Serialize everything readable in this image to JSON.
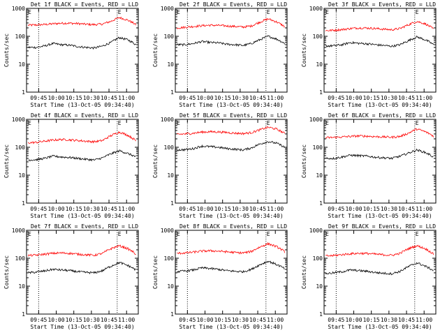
{
  "colors": {
    "events": "#000000",
    "lld": "#ff0000",
    "axis": "#000000",
    "background": "#ffffff"
  },
  "common": {
    "xlabel": "Start Time (13-Oct-05 09:34:40)",
    "ylabel": "Counts/sec",
    "x_ticks": [
      "09:45",
      "10:00",
      "10:15",
      "10:30",
      "10:45",
      "11:00"
    ],
    "y_ticks": [
      "1",
      "10",
      "100",
      "1000"
    ],
    "corner_marker": "E",
    "x_range_hhmm": [
      "09:34:40",
      "11:10"
    ],
    "y_scale": "log",
    "y_range": [
      1,
      1000
    ],
    "dotted_vlines": [
      "09:45",
      "10:52"
    ]
  },
  "chart_data": [
    {
      "type": "line",
      "title": "Det 1f BLACK = Events, RED = LLD",
      "xlabel": "Start Time (13-Oct-05 09:34:40)",
      "ylabel": "Counts/sec",
      "series": [
        {
          "name": "LLD",
          "color": "#ff0000",
          "values": [
            250,
            255,
            265,
            280,
            295,
            295,
            285,
            270,
            262,
            275,
            345,
            470,
            380,
            260
          ]
        },
        {
          "name": "Events",
          "color": "#000000",
          "values": [
            40,
            40,
            45,
            55,
            50,
            48,
            43,
            40,
            38,
            45,
            60,
            90,
            75,
            50
          ]
        }
      ]
    },
    {
      "type": "line",
      "title": "Det 2f BLACK = Events, RED = LLD",
      "xlabel": "Start Time (13-Oct-05 09:34:40)",
      "ylabel": "Counts/sec",
      "series": [
        {
          "name": "LLD",
          "color": "#ff0000",
          "values": [
            200,
            210,
            225,
            240,
            250,
            245,
            235,
            225,
            215,
            235,
            320,
            420,
            330,
            220
          ]
        },
        {
          "name": "Events",
          "color": "#000000",
          "values": [
            50,
            50,
            55,
            65,
            60,
            58,
            52,
            50,
            47,
            55,
            75,
            100,
            80,
            55
          ]
        }
      ]
    },
    {
      "type": "line",
      "title": "Det 3f BLACK = Events, RED = LLD",
      "xlabel": "Start Time (13-Oct-05 09:34:40)",
      "ylabel": "Counts/sec",
      "series": [
        {
          "name": "LLD",
          "color": "#ff0000",
          "values": [
            160,
            165,
            175,
            190,
            200,
            198,
            190,
            180,
            172,
            190,
            260,
            340,
            280,
            180
          ]
        },
        {
          "name": "Events",
          "color": "#000000",
          "values": [
            45,
            46,
            50,
            60,
            56,
            54,
            50,
            47,
            44,
            50,
            70,
            95,
            75,
            50
          ]
        }
      ]
    },
    {
      "type": "line",
      "title": "Det 4f BLACK = Events, RED = LLD",
      "xlabel": "Start Time (13-Oct-05 09:34:40)",
      "ylabel": "Counts/sec",
      "series": [
        {
          "name": "LLD",
          "color": "#ff0000",
          "values": [
            145,
            150,
            165,
            180,
            190,
            185,
            175,
            165,
            158,
            175,
            260,
            350,
            270,
            170
          ]
        },
        {
          "name": "Events",
          "color": "#000000",
          "values": [
            35,
            36,
            40,
            48,
            45,
            43,
            40,
            37,
            35,
            42,
            58,
            75,
            60,
            45
          ]
        }
      ]
    },
    {
      "type": "line",
      "title": "Det 5f BLACK = Events, RED = LLD",
      "xlabel": "Start Time (13-Oct-05 09:34:40)",
      "ylabel": "Counts/sec",
      "series": [
        {
          "name": "LLD",
          "color": "#ff0000",
          "values": [
            290,
            300,
            320,
            350,
            360,
            355,
            340,
            320,
            310,
            335,
            420,
            520,
            450,
            310
          ]
        },
        {
          "name": "Events",
          "color": "#000000",
          "values": [
            80,
            82,
            90,
            110,
            105,
            100,
            90,
            85,
            80,
            95,
            130,
            160,
            140,
            100
          ]
        }
      ]
    },
    {
      "type": "line",
      "title": "Det 6f BLACK = Events, RED = LLD",
      "xlabel": "Start Time (13-Oct-05 09:34:40)",
      "ylabel": "Counts/sec",
      "series": [
        {
          "name": "LLD",
          "color": "#ff0000",
          "values": [
            220,
            225,
            235,
            245,
            255,
            250,
            240,
            235,
            230,
            245,
            320,
            450,
            360,
            250
          ]
        },
        {
          "name": "Events",
          "color": "#000000",
          "values": [
            40,
            40,
            45,
            52,
            50,
            48,
            44,
            42,
            40,
            48,
            62,
            80,
            65,
            45
          ]
        }
      ]
    },
    {
      "type": "line",
      "title": "Det 7f BLACK = Events, RED = LLD",
      "xlabel": "Start Time (13-Oct-05 09:34:40)",
      "ylabel": "Counts/sec",
      "series": [
        {
          "name": "LLD",
          "color": "#ff0000",
          "values": [
            125,
            130,
            140,
            150,
            155,
            150,
            140,
            133,
            128,
            150,
            220,
            280,
            220,
            140
          ]
        },
        {
          "name": "Events",
          "color": "#000000",
          "values": [
            30,
            32,
            35,
            40,
            38,
            36,
            33,
            31,
            30,
            36,
            52,
            70,
            55,
            38
          ]
        }
      ]
    },
    {
      "type": "line",
      "title": "Det 8f BLACK = Events, RED = LLD",
      "xlabel": "Start Time (13-Oct-05 09:34:40)",
      "ylabel": "Counts/sec",
      "series": [
        {
          "name": "LLD",
          "color": "#ff0000",
          "values": [
            150,
            155,
            165,
            180,
            185,
            180,
            170,
            160,
            155,
            175,
            250,
            330,
            260,
            170
          ]
        },
        {
          "name": "Events",
          "color": "#000000",
          "values": [
            33,
            35,
            38,
            45,
            43,
            40,
            36,
            34,
            33,
            40,
            58,
            78,
            60,
            42
          ]
        }
      ]
    },
    {
      "type": "line",
      "title": "Det 9f BLACK = Events, RED = LLD",
      "xlabel": "Start Time (13-Oct-05 09:34:40)",
      "ylabel": "Counts/sec",
      "series": [
        {
          "name": "LLD",
          "color": "#ff0000",
          "values": [
            120,
            125,
            135,
            145,
            150,
            148,
            140,
            133,
            128,
            150,
            220,
            280,
            220,
            140
          ]
        },
        {
          "name": "Events",
          "color": "#000000",
          "values": [
            28,
            30,
            33,
            38,
            36,
            34,
            31,
            29,
            28,
            34,
            50,
            68,
            52,
            36
          ]
        }
      ]
    }
  ]
}
